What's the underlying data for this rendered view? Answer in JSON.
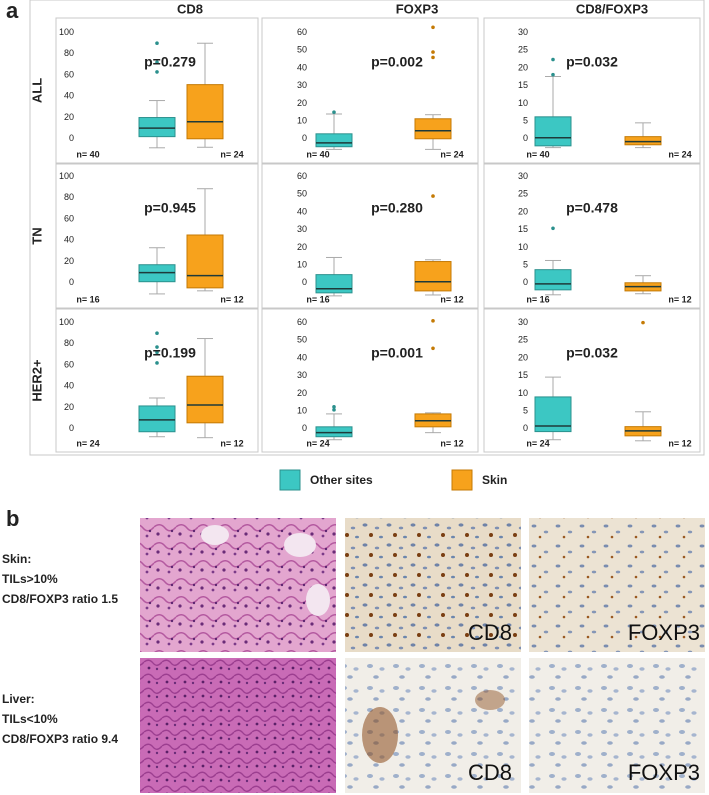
{
  "panel_label_a": "a",
  "panel_label_b": "b",
  "column_headers": [
    "CD8",
    "FOXP3",
    "CD8/FOXP3"
  ],
  "row_headers": [
    "ALL",
    "TN",
    "HER2+"
  ],
  "legend": [
    {
      "name": "Other sites",
      "color": "#3cc7c3"
    },
    {
      "name": "Skin",
      "color": "#f7a21c"
    }
  ],
  "chart_data": [
    {
      "type": "box",
      "annotation": "p=0.279",
      "ylim": [
        -20,
        110
      ],
      "yticks": [
        0,
        20,
        40,
        60,
        80,
        100
      ],
      "groups": [
        {
          "whisker_low": -8.5,
          "q1": 2,
          "median": 10,
          "q3": 20,
          "whisker_high": 36,
          "outliers": [
            90,
            72,
            63
          ],
          "n_label": "n= 40"
        },
        {
          "whisker_low": -8,
          "q1": 0,
          "median": 16,
          "q3": 51,
          "whisker_high": 90,
          "outliers": [],
          "n_label": "n= 24"
        }
      ]
    },
    {
      "type": "box",
      "annotation": "p=0.002",
      "ylim": [
        -12,
        66
      ],
      "yticks": [
        0,
        10,
        20,
        30,
        40,
        50,
        60
      ],
      "groups": [
        {
          "whisker_low": -6,
          "q1": -4.5,
          "median": -2.3,
          "q3": 2.8,
          "whisker_high": 14,
          "outliers": [
            15
          ],
          "n_label": "n= 40"
        },
        {
          "whisker_low": -6,
          "q1": 0,
          "median": 4.5,
          "q3": 11.3,
          "whisker_high": 13.6,
          "outliers": [
            63,
            49,
            46
          ],
          "n_label": "n= 24"
        }
      ]
    },
    {
      "type": "box",
      "annotation": "p=0.032",
      "ylim": [
        -6,
        33
      ],
      "yticks": [
        0,
        5,
        10,
        15,
        20,
        25,
        30
      ],
      "groups": [
        {
          "whisker_low": -2.5,
          "q1": -2,
          "median": 0.3,
          "q3": 6.2,
          "whisker_high": 17.6,
          "outliers": [
            22.4,
            18.1
          ],
          "n_label": "n= 40"
        },
        {
          "whisker_low": -2.5,
          "q1": -1.7,
          "median": -0.8,
          "q3": 0.6,
          "whisker_high": 4.5,
          "outliers": [],
          "n_label": "n= 24"
        }
      ]
    },
    {
      "type": "box",
      "annotation": "p=0.945",
      "ylim": [
        -20,
        110
      ],
      "yticks": [
        0,
        20,
        40,
        60,
        80,
        100
      ],
      "groups": [
        {
          "whisker_low": -10.5,
          "q1": 1,
          "median": 9.5,
          "q3": 17,
          "whisker_high": 33,
          "outliers": [],
          "n_label": "n= 16"
        },
        {
          "whisker_low": -7.6,
          "q1": -4.8,
          "median": 6.7,
          "q3": 45,
          "whisker_high": 88.6,
          "outliers": [],
          "n_label": "n= 12"
        }
      ]
    },
    {
      "type": "box",
      "annotation": "p=0.280",
      "ylim": [
        -12,
        66
      ],
      "yticks": [
        0,
        10,
        20,
        30,
        40,
        50,
        60
      ],
      "groups": [
        {
          "whisker_low": -7.4,
          "q1": -5.7,
          "median": -3.4,
          "q3": 4.6,
          "whisker_high": 14.3,
          "outliers": [],
          "n_label": "n= 16"
        },
        {
          "whisker_low": -6.9,
          "q1": -4.6,
          "median": 0.6,
          "q3": 12,
          "whisker_high": 13,
          "outliers": [
            49
          ],
          "n_label": "n= 12"
        }
      ]
    },
    {
      "type": "box",
      "annotation": "p=0.478",
      "ylim": [
        -6,
        33
      ],
      "yticks": [
        0,
        5,
        10,
        15,
        20,
        25,
        30
      ],
      "groups": [
        {
          "whisker_low": -3.4,
          "q1": -2,
          "median": -0.3,
          "q3": 3.7,
          "whisker_high": 6.3,
          "outliers": [
            15.4
          ],
          "n_label": "n= 16"
        },
        {
          "whisker_low": -3.1,
          "q1": -2.3,
          "median": -1.1,
          "q3": 0,
          "whisker_high": 2,
          "outliers": [],
          "n_label": "n= 12"
        }
      ]
    },
    {
      "type": "box",
      "annotation": "p=0.199",
      "ylim": [
        -20,
        110
      ],
      "yticks": [
        0,
        20,
        40,
        60,
        80,
        100
      ],
      "groups": [
        {
          "whisker_low": -7.5,
          "q1": -2.8,
          "median": 8.4,
          "q3": 21.5,
          "whisker_high": 29,
          "outliers": [
            90,
            77,
            72,
            62
          ],
          "n_label": "n= 24"
        },
        {
          "whisker_low": -8.4,
          "q1": 5.6,
          "median": 22.4,
          "q3": 49.5,
          "whisker_high": 85,
          "outliers": [],
          "n_label": "n= 12"
        }
      ]
    },
    {
      "type": "box",
      "annotation": "p=0.001",
      "ylim": [
        -12,
        66
      ],
      "yticks": [
        0,
        10,
        20,
        30,
        40,
        50,
        60
      ],
      "groups": [
        {
          "whisker_low": -6.2,
          "q1": -4.5,
          "median": -2.2,
          "q3": 1.1,
          "whisker_high": 8.4,
          "outliers": [
            12.4,
            10.7
          ],
          "n_label": "n= 24"
        },
        {
          "whisker_low": -2.2,
          "q1": 1.1,
          "median": 4.5,
          "q3": 8.4,
          "whisker_high": 9,
          "outliers": [
            61,
            45.5
          ],
          "n_label": "n= 12"
        }
      ]
    },
    {
      "type": "box",
      "annotation": "p=0.032",
      "ylim": [
        -6,
        33
      ],
      "yticks": [
        0,
        5,
        10,
        15,
        20,
        25,
        30
      ],
      "groups": [
        {
          "whisker_low": -3.1,
          "q1": -0.8,
          "median": 0.8,
          "q3": 9,
          "whisker_high": 14.6,
          "outliers": [],
          "n_label": "n= 24"
        },
        {
          "whisker_low": -3.4,
          "q1": -2,
          "median": -0.6,
          "q3": 0.6,
          "whisker_high": 4.8,
          "outliers": [
            30
          ],
          "n_label": "n= 12"
        }
      ]
    }
  ],
  "panel_b": {
    "rows": [
      {
        "lines": [
          "Skin:",
          "TILs>10%",
          "CD8/FOXP3 ratio 1.5"
        ],
        "image_labels": [
          "CD8",
          "FOXP3"
        ]
      },
      {
        "lines": [
          "Liver:",
          "TILs<10%",
          "CD8/FOXP3 ratio 9.4"
        ],
        "image_labels": [
          "CD8",
          "FOXP3"
        ]
      }
    ]
  }
}
